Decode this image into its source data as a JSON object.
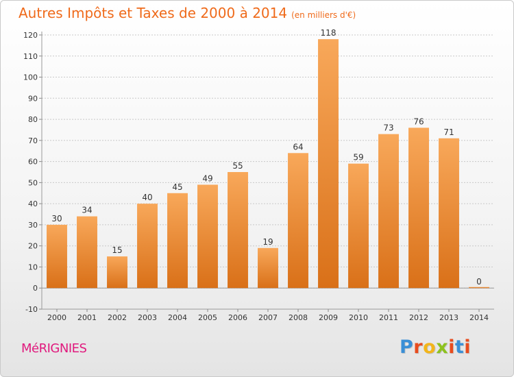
{
  "header": {
    "title": "Autres Impôts et Taxes de 2000 à 2014",
    "unit": "(en milliers d'€)"
  },
  "footer": {
    "town": "MéRIGNIES",
    "logo_letters": [
      "P",
      "r",
      "o",
      "x",
      "i",
      "t",
      "i"
    ]
  },
  "colors": {
    "title": "#ef6a1a",
    "town": "#e0197d",
    "bar_light": "#f8a85a",
    "bar_dark": "#d97018",
    "logo": [
      "#3a8fd6",
      "#e84c1e",
      "#f2b51b",
      "#8dc21f",
      "#e84c1e",
      "#3a8fd6",
      "#e84c1e"
    ]
  },
  "chart_data": {
    "type": "bar",
    "categories": [
      "2000",
      "2001",
      "2002",
      "2003",
      "2004",
      "2005",
      "2006",
      "2007",
      "2008",
      "2009",
      "2010",
      "2011",
      "2012",
      "2013",
      "2014"
    ],
    "values": [
      30,
      34,
      15,
      40,
      45,
      49,
      55,
      19,
      64,
      118,
      59,
      73,
      76,
      71,
      0
    ],
    "title": "Autres Impôts et Taxes de 2000 à 2014",
    "subtitle": "(en milliers d'€)",
    "xlabel": "",
    "ylabel": "",
    "ylim": [
      -10,
      120
    ],
    "yticks": [
      -10,
      0,
      10,
      20,
      30,
      40,
      50,
      60,
      70,
      80,
      90,
      100,
      110,
      120
    ],
    "grid": true,
    "data_labels": true
  }
}
